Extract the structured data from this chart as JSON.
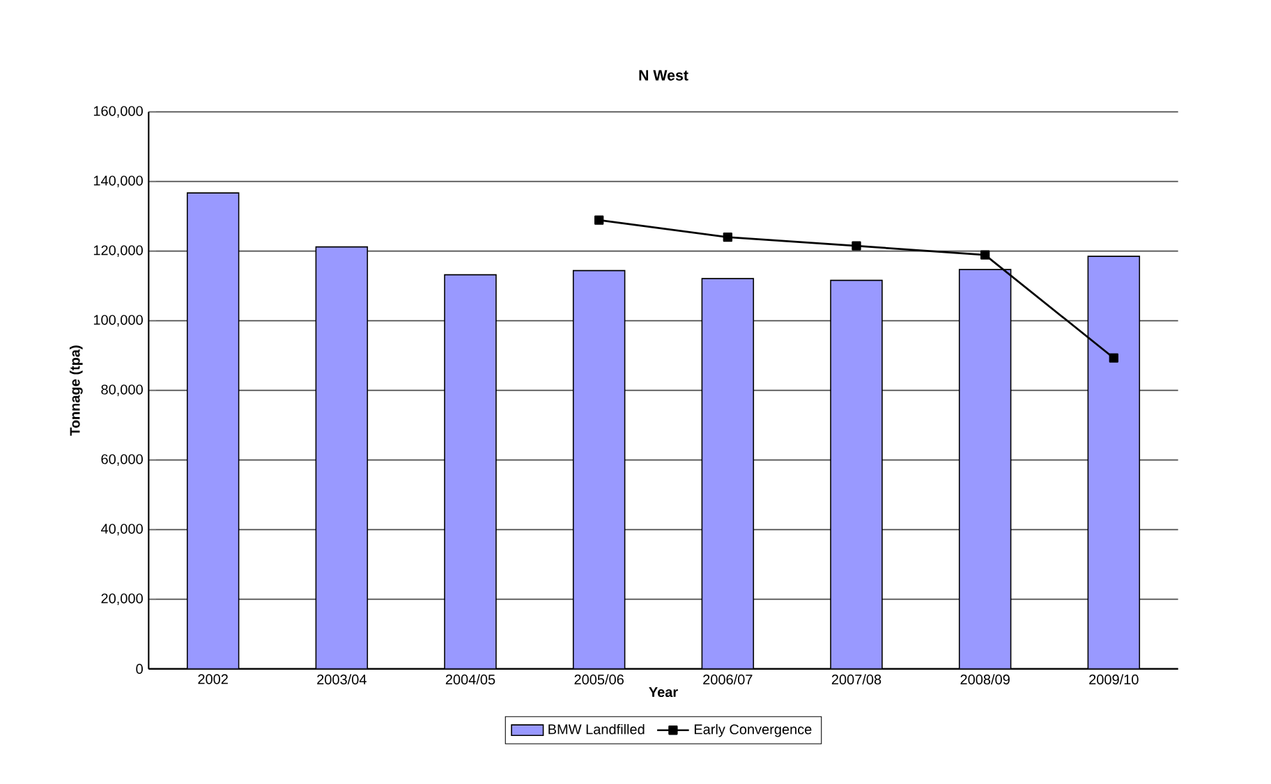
{
  "chart_data": {
    "type": "bar",
    "title": "N West",
    "xlabel": "Year",
    "ylabel": "Tonnage (tpa)",
    "categories": [
      "2002",
      "2003/04",
      "2004/05",
      "2005/06",
      "2006/07",
      "2007/08",
      "2008/09",
      "2009/10"
    ],
    "series": [
      {
        "name": "BMW Landfilled",
        "color": "#9999ff",
        "values": [
          136700,
          121200,
          113200,
          114400,
          112100,
          111600,
          114700,
          118500
        ]
      },
      {
        "name": "Early Convergence",
        "type": "line",
        "color": "#000000",
        "marker": "square",
        "values": [
          null,
          null,
          null,
          128900,
          124000,
          121500,
          118900,
          89300
        ]
      }
    ],
    "ylim": [
      0,
      160000
    ],
    "yticks": [
      {
        "value": 0,
        "label": "0"
      },
      {
        "value": 20000,
        "label": "20,000"
      },
      {
        "value": 40000,
        "label": "40,000"
      },
      {
        "value": 60000,
        "label": "60,000"
      },
      {
        "value": 80000,
        "label": "80,000"
      },
      {
        "value": 100000,
        "label": "100,000"
      },
      {
        "value": 120000,
        "label": "120,000"
      },
      {
        "value": 140000,
        "label": "140,000"
      },
      {
        "value": 160000,
        "label": "160,000"
      }
    ],
    "grid": "y",
    "legend": "bottom"
  }
}
